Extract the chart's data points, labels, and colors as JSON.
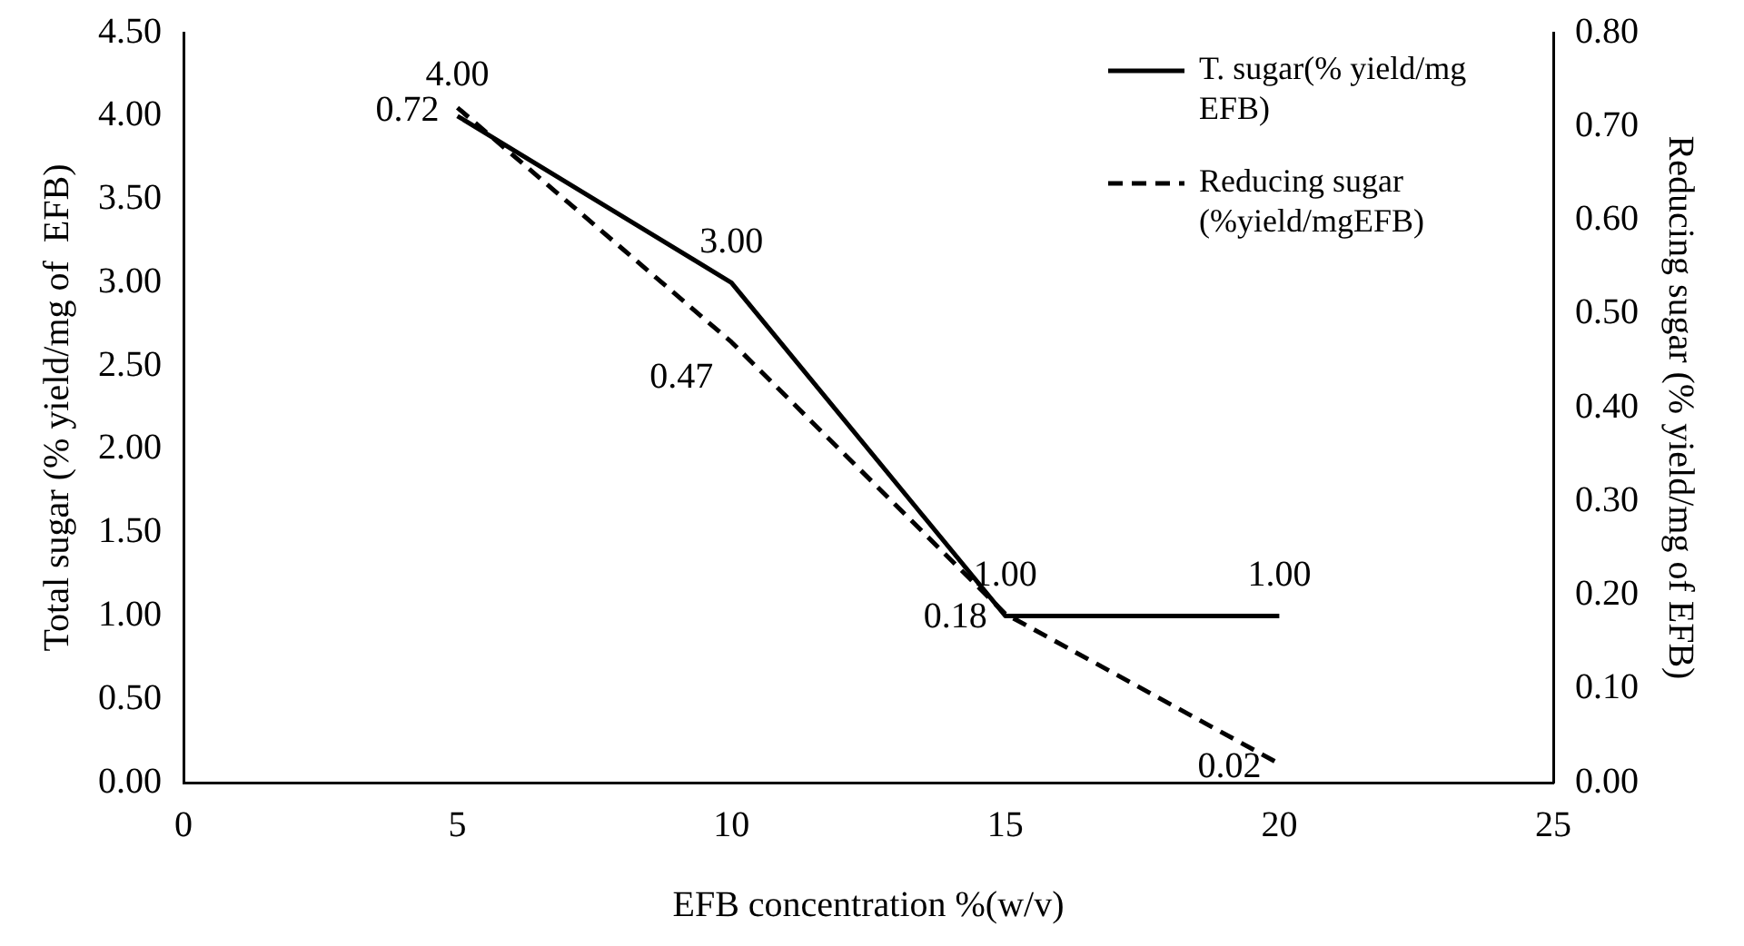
{
  "chart_data": {
    "type": "line",
    "xlabel": "EFB concentration %(w/v)",
    "ylabel": "Total sugar (% yield/mg of  EFB)",
    "y2label": "Reducing sugar (% yield/mg of EFB)",
    "x": [
      5,
      10,
      15,
      20
    ],
    "series": [
      {
        "name": "T. sugar(% yield/mg EFB)",
        "color": "#000000",
        "line_style": "solid",
        "values": [
          4,
          3,
          1,
          1
        ],
        "value_labels": [
          "4.00",
          "3.00",
          "1.00",
          "1.00"
        ]
      },
      {
        "name": "Reducing sugar (%yield/mgEFB)",
        "color": "#000000",
        "line_style": "dashed",
        "axis": "y2",
        "values": [
          0.72,
          0.47,
          0.18,
          0.02
        ],
        "value_labels": [
          "0.72",
          "0.47",
          "0.18",
          "0.02"
        ]
      }
    ],
    "xlim": [
      0,
      25
    ],
    "xticks": [
      0,
      5,
      10,
      15,
      20,
      25
    ],
    "ylim": [
      0,
      4.5
    ],
    "yticks": [
      {
        "value": 0,
        "label": "0.00"
      },
      {
        "value": 0.5,
        "label": "0.50"
      },
      {
        "value": 1,
        "label": "1.00"
      },
      {
        "value": 1.5,
        "label": "1.50"
      },
      {
        "value": 2,
        "label": "2.00"
      },
      {
        "value": 2.5,
        "label": "2.50"
      },
      {
        "value": 3,
        "label": "3.00"
      },
      {
        "value": 3.5,
        "label": "3.50"
      },
      {
        "value": 4,
        "label": "4.00"
      },
      {
        "value": 4.5,
        "label": "4.50"
      }
    ],
    "y2lim": [
      0,
      0.8
    ],
    "y2ticks": [
      {
        "value": 0,
        "label": "0.00"
      },
      {
        "value": 0.1,
        "label": "0.10"
      },
      {
        "value": 0.2,
        "label": "0.20"
      },
      {
        "value": 0.3,
        "label": "0.30"
      },
      {
        "value": 0.4,
        "label": "0.40"
      },
      {
        "value": 0.5,
        "label": "0.50"
      },
      {
        "value": 0.6,
        "label": "0.60"
      },
      {
        "value": 0.7,
        "label": "0.70"
      },
      {
        "value": 0.8,
        "label": "0.80"
      }
    ],
    "grid": false,
    "legend": "top right",
    "marker": "none"
  }
}
